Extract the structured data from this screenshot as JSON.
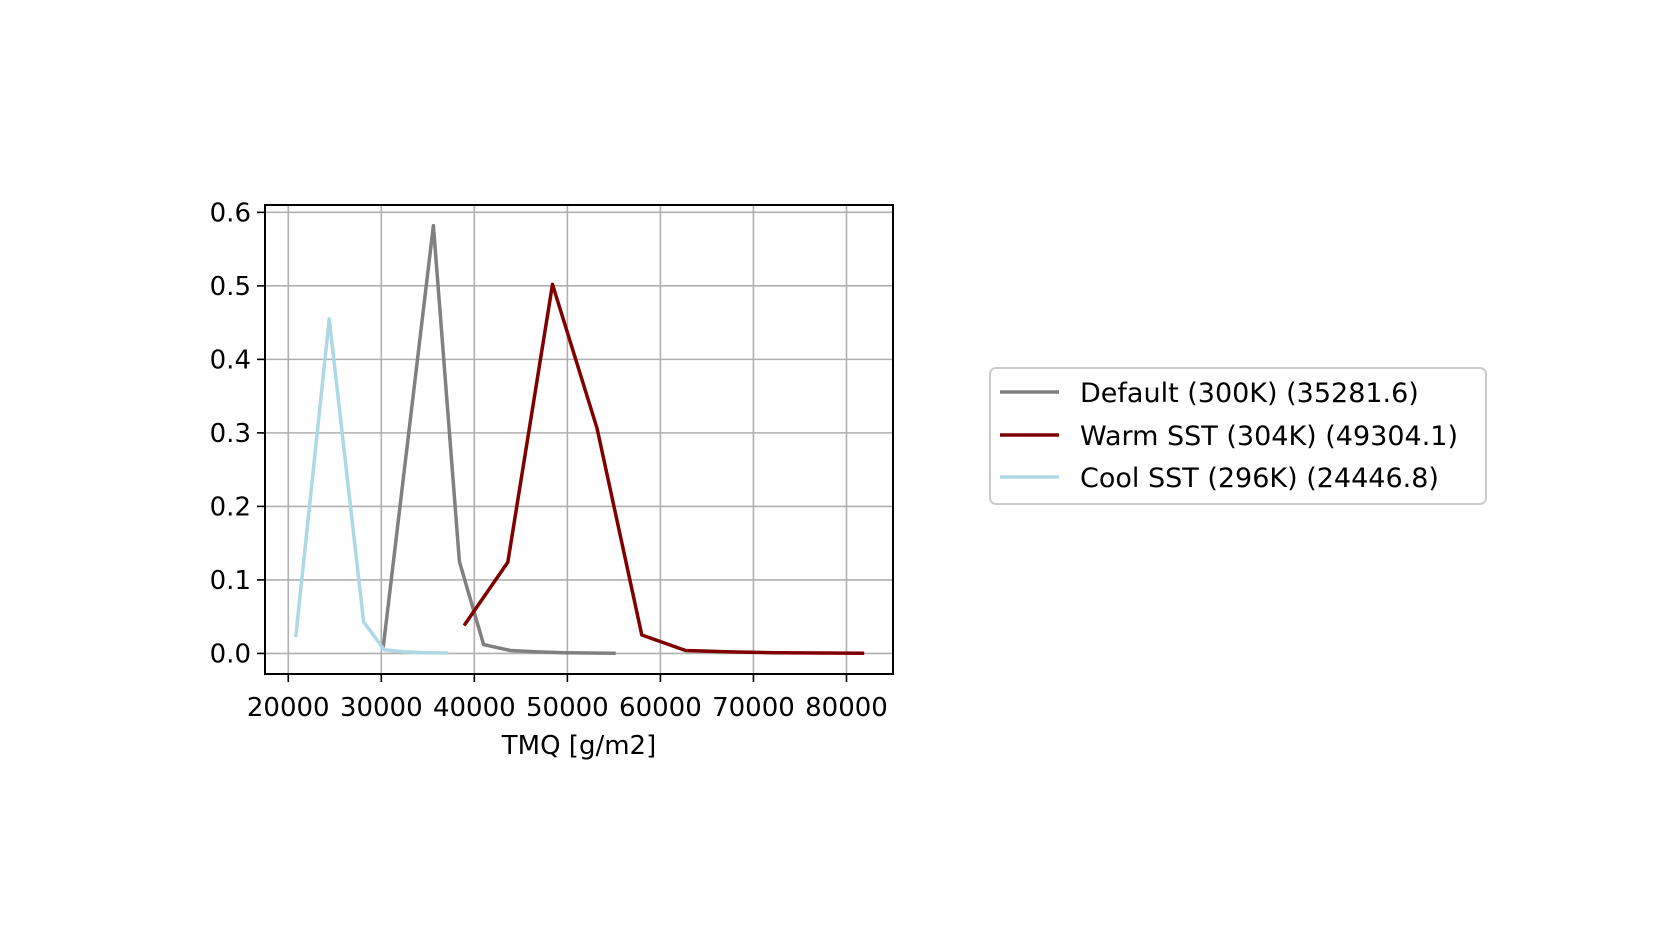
{
  "chart_data": {
    "type": "line",
    "title": "",
    "xlabel": "TMQ [g/m2]",
    "ylabel": "",
    "xlim": [
      17500,
      85000
    ],
    "ylim": [
      -0.028,
      0.61
    ],
    "xticks": [
      20000,
      30000,
      40000,
      50000,
      60000,
      70000,
      80000
    ],
    "yticks": [
      0.0,
      0.1,
      0.2,
      0.3,
      0.4,
      0.5,
      0.6
    ],
    "xtick_labels": [
      "20000",
      "30000",
      "40000",
      "50000",
      "60000",
      "70000",
      "80000"
    ],
    "ytick_labels": [
      "0.0",
      "0.1",
      "0.2",
      "0.3",
      "0.4",
      "0.5",
      "0.6"
    ],
    "grid": true,
    "legend_position": "right, outside plot",
    "series": [
      {
        "name": "Default (300K) (35281.6)",
        "color": "#808080",
        "x": [
          30200,
          35600,
          38400,
          41000,
          43900,
          46800,
          49600,
          52400,
          55200
        ],
        "y": [
          0.008,
          0.582,
          0.125,
          0.012,
          0.004,
          0.002,
          0.001,
          0.0005,
          0.0003
        ]
      },
      {
        "name": "Warm SST (304K) (49304.1)",
        "color": "#800000",
        "x": [
          38900,
          43600,
          48400,
          53200,
          58000,
          62700,
          67500,
          72300,
          77100,
          81900
        ],
        "y": [
          0.038,
          0.124,
          0.502,
          0.306,
          0.025,
          0.004,
          0.002,
          0.001,
          0.0005,
          0.0003
        ]
      },
      {
        "name": "Cool SST (296K) (24446.8)",
        "color": "#add8e6",
        "x": [
          20800,
          24400,
          28100,
          30300,
          32500,
          34800,
          37200
        ],
        "y": [
          0.022,
          0.455,
          0.043,
          0.005,
          0.002,
          0.001,
          0.0005
        ]
      }
    ]
  }
}
